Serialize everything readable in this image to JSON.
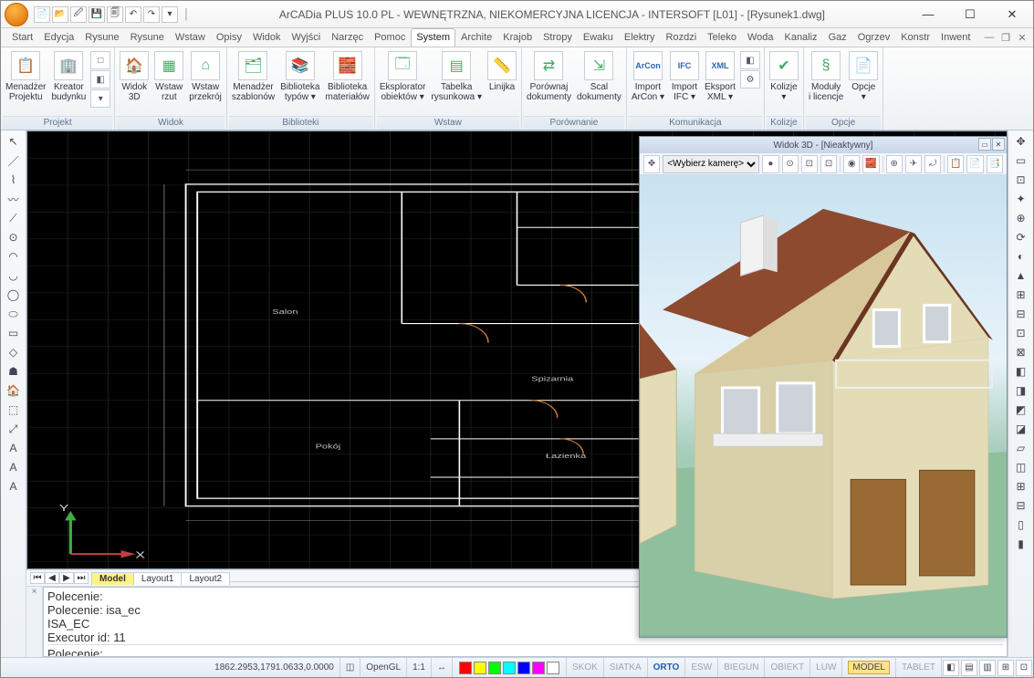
{
  "window": {
    "title": "ArCADia PLUS 10.0 PL - WEWNĘTRZNA, NIEKOMERCYJNA LICENCJA - INTERSOFT [L01] - [Rysunek1.dwg]",
    "qat_icons": [
      "📄",
      "📂",
      "🖉",
      "💾",
      "🗐",
      "↶",
      "↷",
      "▾"
    ]
  },
  "menu": {
    "tabs": [
      "Start",
      "Edycja",
      "Rysune",
      "Rysune",
      "Wstaw",
      "Opisy",
      "Widok",
      "Wyjści",
      "Narzęc",
      "Pomoc",
      "System",
      "Archite",
      "Krajob",
      "Stropy",
      "Ewaku",
      "Elektry",
      "Rozdzi",
      "Teleko",
      "Woda",
      "Kanaliz",
      "Gaz",
      "Ogrzev",
      "Konstr",
      "Inwent"
    ],
    "active_index": 10
  },
  "ribbon": {
    "groups": [
      {
        "label": "Projekt",
        "items": [
          {
            "icon": "📋",
            "text": "Menadżer\nProjektu"
          },
          {
            "icon": "🏢",
            "text": "Kreator\nbudynku"
          }
        ],
        "side": [
          "□",
          "◧",
          "▾"
        ]
      },
      {
        "label": "Widok",
        "items": [
          {
            "icon": "🏠",
            "text": "Widok\n3D"
          },
          {
            "icon": "▦",
            "text": "Wstaw\nrzut"
          },
          {
            "icon": "⌂",
            "text": "Wstaw\nprzekrój"
          }
        ]
      },
      {
        "label": "Biblioteki",
        "items": [
          {
            "icon": "🗂",
            "text": "Menadżer\nszablonów"
          },
          {
            "icon": "📚",
            "text": "Biblioteka\ntypów ▾"
          },
          {
            "icon": "🧱",
            "text": "Biblioteka\nmateriałów"
          }
        ]
      },
      {
        "label": "Wstaw",
        "items": [
          {
            "icon": "🗔",
            "text": "Eksplorator\nobiektów ▾"
          },
          {
            "icon": "▤",
            "text": "Tabelka\nrysunkowa ▾"
          },
          {
            "icon": "📏",
            "text": "Linijka"
          }
        ]
      },
      {
        "label": "Porównanie",
        "items": [
          {
            "icon": "⇄",
            "text": "Porównaj\ndokumenty"
          },
          {
            "icon": "⇲",
            "text": "Scal\ndokumenty"
          }
        ]
      },
      {
        "label": "Komunikacja",
        "items": [
          {
            "icon": "Ar",
            "text": "Import\nArCon ▾",
            "badge": "ArCon"
          },
          {
            "icon": "IFC",
            "text": "Import\nIFC ▾",
            "badge": "IFC"
          },
          {
            "icon": "XML",
            "text": "Eksport\nXML ▾",
            "badge": "XML"
          }
        ],
        "side": [
          "◧",
          "⚙"
        ]
      },
      {
        "label": "Kolizje",
        "items": [
          {
            "icon": "✔",
            "text": "Kolizje\n▾"
          }
        ]
      },
      {
        "label": "Opcje",
        "items": [
          {
            "icon": "§",
            "text": "Moduły\ni licencje"
          },
          {
            "icon": "📄",
            "text": "Opcje\n▾"
          }
        ]
      }
    ]
  },
  "left_tools": [
    "↖",
    "／",
    "⌇",
    "〰",
    "⟋",
    "⊙",
    "◠",
    "◡",
    "◯",
    "⬭",
    "▭",
    "◇",
    "☗",
    "🏠",
    "⬚",
    "⤢",
    "A",
    "A",
    "A"
  ],
  "right_tools": [
    "✥",
    "▭",
    "⊡",
    "✦",
    "⊕",
    "⟳",
    "◐",
    "▲",
    "⊞",
    "⊟",
    "⊡",
    "⊠",
    "◧",
    "◨",
    "◩",
    "◪",
    "▱",
    "◫",
    "⊞",
    "⊟",
    "▯",
    "▮"
  ],
  "panel3d": {
    "title": "Widok 3D - [Nieaktywny]",
    "camera_label": "<Wybierz kamerę>",
    "tool_icons": [
      "✥",
      "●",
      "⊙",
      "⊡",
      "⊡",
      "◉",
      "🧱",
      "⊕",
      "✈",
      "⤾",
      "📋",
      "📄",
      "📑"
    ],
    "house": {
      "wall_color": "#e3dcb7",
      "roof_color": "#8d4a2f",
      "roof_shadow": "#6b3521",
      "eave_color": "#d7c79b",
      "door_color": "#9a6a35",
      "window_frame": "#ffffff",
      "window_glass": "#cdd3d8",
      "chimney_color": "#f2f2f2",
      "ground_color": "#8fbf9c",
      "sky_top": "#c8e2f0",
      "sky_mid": "#e8f3fa"
    }
  },
  "plan2d": {
    "bg": "#000000",
    "grid": "#1f2a1f",
    "wall": "#ffffff",
    "accent": "#c97a2a",
    "red": "#d03030",
    "green": "#2fae2f",
    "dim": "#8c8c8c",
    "ucs_x": "#c04040",
    "ucs_y": "#3fae3f"
  },
  "layout_tabs": {
    "nav": [
      "⏮",
      "◀",
      "▶",
      "⏭"
    ],
    "tabs": [
      "Model",
      "Layout1",
      "Layout2"
    ],
    "active": 0
  },
  "command": {
    "history": [
      "Polecenie:",
      "Polecenie: isa_ec",
      "ISA_EC",
      "Executor id: 11"
    ],
    "prompt": "Polecenie:"
  },
  "status": {
    "coords": "1862.2953,1791.0633,0.0000",
    "renderer": "OpenGL",
    "scale": "1:1",
    "items_dim": [
      "SKOK",
      "SIATKA"
    ],
    "items_on": [
      "ORTO"
    ],
    "layer_colors": [
      "#ff0000",
      "#ffff00",
      "#00ff00",
      "#00ffff",
      "#0000ff",
      "#ff00ff",
      "#ffffff"
    ],
    "model_label": "MODEL",
    "tablet_label": "TABLET",
    "extra_icons": [
      "◧",
      "▤",
      "▥",
      "⊞",
      "⊡"
    ]
  }
}
